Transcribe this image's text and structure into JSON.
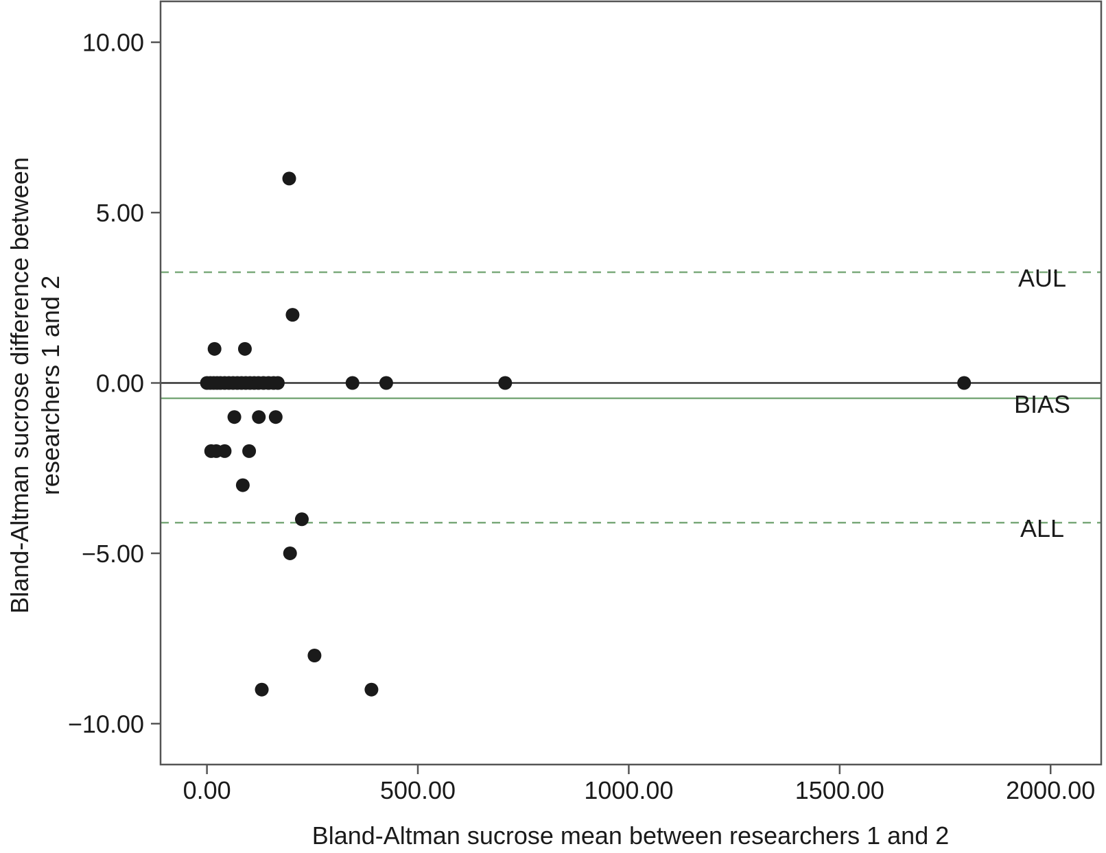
{
  "chart_data": {
    "type": "scatter",
    "title": "",
    "xlabel": "Bland-Altman sucrose mean between researchers 1 and 2",
    "ylabel_lines": [
      "Bland-Altman sucrose difference between",
      "researchers 1 and 2"
    ],
    "xlim": [
      -110,
      2120
    ],
    "ylim": [
      -11.2,
      11.2
    ],
    "xticks": [
      0,
      500,
      1000,
      1500,
      2000
    ],
    "xtick_labels": [
      "0.00",
      "500.00",
      "1000.00",
      "1500.00",
      "2000.00"
    ],
    "yticks": [
      10,
      5,
      0,
      -5,
      -10
    ],
    "ytick_labels": [
      "10.00",
      "5.00",
      "0.00",
      "−5.00",
      "−10.00"
    ],
    "grid": false,
    "reference_lines": [
      {
        "label": "AUL",
        "y": 3.25,
        "style": "dashed",
        "color": "#7aa97a"
      },
      {
        "label": "",
        "y": 0,
        "style": "solid",
        "color": "#333333"
      },
      {
        "label": "BIAS",
        "y": -0.45,
        "style": "solid",
        "color": "#7aa97a"
      },
      {
        "label": "ALL",
        "y": -4.1,
        "style": "dashed",
        "color": "#7aa97a"
      }
    ],
    "points": [
      {
        "x": 0,
        "y": 0
      },
      {
        "x": 8,
        "y": 0
      },
      {
        "x": 16,
        "y": 0
      },
      {
        "x": 24,
        "y": 0
      },
      {
        "x": 32,
        "y": 0
      },
      {
        "x": 42,
        "y": 0
      },
      {
        "x": 52,
        "y": 0
      },
      {
        "x": 62,
        "y": 0
      },
      {
        "x": 72,
        "y": 0
      },
      {
        "x": 82,
        "y": 0
      },
      {
        "x": 92,
        "y": 0
      },
      {
        "x": 102,
        "y": 0
      },
      {
        "x": 112,
        "y": 0
      },
      {
        "x": 122,
        "y": 0
      },
      {
        "x": 134,
        "y": 0
      },
      {
        "x": 146,
        "y": 0
      },
      {
        "x": 158,
        "y": 0
      },
      {
        "x": 168,
        "y": 0
      },
      {
        "x": 345,
        "y": 0
      },
      {
        "x": 425,
        "y": 0
      },
      {
        "x": 707,
        "y": 0
      },
      {
        "x": 1795,
        "y": 0
      },
      {
        "x": 195,
        "y": 6
      },
      {
        "x": 203,
        "y": 2
      },
      {
        "x": 18,
        "y": 1
      },
      {
        "x": 90,
        "y": 1
      },
      {
        "x": 65,
        "y": -1
      },
      {
        "x": 123,
        "y": -1
      },
      {
        "x": 163,
        "y": -1
      },
      {
        "x": 10,
        "y": -2
      },
      {
        "x": 22,
        "y": -2
      },
      {
        "x": 42,
        "y": -2
      },
      {
        "x": 100,
        "y": -2
      },
      {
        "x": 85,
        "y": -3
      },
      {
        "x": 225,
        "y": -4
      },
      {
        "x": 197,
        "y": -5
      },
      {
        "x": 255,
        "y": -8
      },
      {
        "x": 130,
        "y": -9
      },
      {
        "x": 390,
        "y": -9
      }
    ],
    "marker_color": "#1a1a1a"
  }
}
